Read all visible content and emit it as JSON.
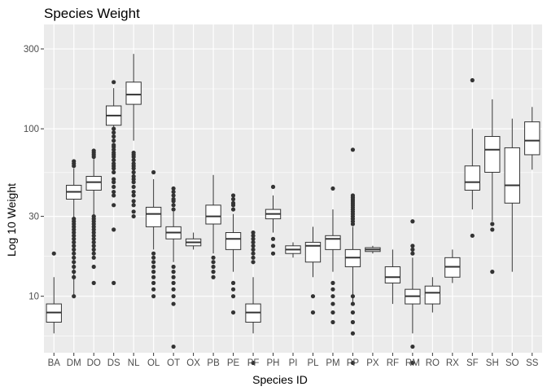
{
  "chart_data": {
    "type": "boxplot",
    "title": "Species Weight",
    "xlabel": "Species ID",
    "ylabel": "Log 10 Weight",
    "y_scale": "log10",
    "ylim": [
      4.6,
      420
    ],
    "y_ticks": [
      10,
      30,
      100,
      300
    ],
    "grid": true,
    "legend": "none",
    "colors": {
      "panel": "#EBEBEB",
      "grid_major": "#FFFFFF",
      "box_fill": "#FFFFFF",
      "box_line": "#333333",
      "outlier": "#333333"
    },
    "categories": [
      "BA",
      "DM",
      "DO",
      "DS",
      "NL",
      "OL",
      "OT",
      "OX",
      "PB",
      "PE",
      "PF",
      "PH",
      "PI",
      "PL",
      "PM",
      "PP",
      "PX",
      "RF",
      "RM",
      "RO",
      "RX",
      "SF",
      "SH",
      "SO",
      "SS"
    ],
    "boxes": [
      {
        "id": "BA",
        "whisker_low": 6,
        "q1": 7,
        "median": 8,
        "q3": 9,
        "whisker_high": 13,
        "outliers": [
          18
        ]
      },
      {
        "id": "DM",
        "whisker_low": 10,
        "q1": 38,
        "median": 42,
        "q3": 46,
        "whisker_high": 58,
        "outliers": [
          10,
          13,
          14,
          15,
          16,
          17,
          18,
          19,
          20,
          21,
          22,
          23,
          24,
          25,
          26,
          27,
          28,
          29,
          60,
          62,
          64
        ]
      },
      {
        "id": "DO",
        "whisker_low": 30,
        "q1": 43,
        "median": 48,
        "q3": 52,
        "whisker_high": 66,
        "outliers": [
          12,
          15,
          17,
          18,
          19,
          20,
          21,
          22,
          23,
          24,
          25,
          26,
          27,
          28,
          29,
          30,
          68,
          70,
          72,
          74
        ]
      },
      {
        "id": "DS",
        "whisker_low": 100,
        "q1": 105,
        "median": 120,
        "q3": 137,
        "whisker_high": 175,
        "outliers": [
          12,
          25,
          35,
          40,
          42,
          45,
          48,
          50,
          55,
          58,
          60,
          62,
          65,
          68,
          70,
          72,
          75,
          78,
          80,
          85,
          90,
          95,
          100,
          190
        ]
      },
      {
        "id": "NL",
        "whisker_low": 85,
        "q1": 140,
        "median": 160,
        "q3": 190,
        "whisker_high": 280,
        "outliers": [
          30,
          32,
          35,
          37,
          40,
          42,
          45,
          48,
          50,
          52,
          55,
          58,
          60,
          62,
          65,
          68,
          70,
          72
        ]
      },
      {
        "id": "OL",
        "whisker_low": 19,
        "q1": 26,
        "median": 31,
        "q3": 34,
        "whisker_high": 50,
        "outliers": [
          10,
          11,
          12,
          13,
          14,
          15,
          16,
          17,
          18,
          55
        ]
      },
      {
        "id": "OT",
        "whisker_low": 16,
        "q1": 22,
        "median": 24,
        "q3": 26,
        "whisker_high": 32,
        "outliers": [
          5,
          9,
          10,
          11,
          12,
          13,
          14,
          15,
          33,
          35,
          37,
          38,
          40,
          42,
          44
        ]
      },
      {
        "id": "OX",
        "whisker_low": 19,
        "q1": 20,
        "median": 21,
        "q3": 22,
        "whisker_high": 24,
        "outliers": []
      },
      {
        "id": "PB",
        "whisker_low": 18,
        "q1": 27,
        "median": 30,
        "q3": 35,
        "whisker_high": 53,
        "outliers": [
          13,
          14,
          15,
          16,
          17
        ]
      },
      {
        "id": "PE",
        "whisker_low": 14,
        "q1": 19,
        "median": 22,
        "q3": 24,
        "whisker_high": 31,
        "outliers": [
          8,
          10,
          11,
          12,
          33,
          35,
          36,
          38,
          40
        ]
      },
      {
        "id": "PF",
        "whisker_low": 6,
        "q1": 7,
        "median": 8,
        "q3": 9,
        "whisker_high": 13,
        "outliers": [
          4,
          16,
          17,
          18,
          19,
          20,
          21,
          22,
          23,
          24
        ]
      },
      {
        "id": "PH",
        "whisker_low": 24,
        "q1": 29,
        "median": 31,
        "q3": 33,
        "whisker_high": 40,
        "outliers": [
          18,
          20,
          22,
          45
        ]
      },
      {
        "id": "PI",
        "whisker_low": 17,
        "q1": 18,
        "median": 19,
        "q3": 20,
        "whisker_high": 21,
        "outliers": []
      },
      {
        "id": "PL",
        "whisker_low": 13,
        "q1": 16,
        "median": 20,
        "q3": 21,
        "whisker_high": 26,
        "outliers": [
          8,
          10
        ]
      },
      {
        "id": "PM",
        "whisker_low": 14,
        "q1": 19,
        "median": 22,
        "q3": 23,
        "whisker_high": 33,
        "outliers": [
          7,
          8,
          9,
          10,
          11,
          12,
          44
        ]
      },
      {
        "id": "PP",
        "whisker_low": 9,
        "q1": 15,
        "median": 17,
        "q3": 19,
        "whisker_high": 26,
        "outliers": [
          4,
          6,
          7,
          8,
          9,
          10,
          27,
          28,
          29,
          30,
          31,
          32,
          33,
          34,
          35,
          36,
          37,
          38,
          39,
          40,
          75
        ]
      },
      {
        "id": "PX",
        "whisker_low": 18,
        "q1": 18.5,
        "median": 19,
        "q3": 19.5,
        "whisker_high": 20,
        "outliers": []
      },
      {
        "id": "RF",
        "whisker_low": 9,
        "q1": 12,
        "median": 13,
        "q3": 15,
        "whisker_high": 19,
        "outliers": []
      },
      {
        "id": "RM",
        "whisker_low": 6,
        "q1": 9,
        "median": 10,
        "q3": 11,
        "whisker_high": 17,
        "outliers": [
          4,
          5,
          18,
          19,
          20,
          28
        ]
      },
      {
        "id": "RO",
        "whisker_low": 8,
        "q1": 9,
        "median": 10.5,
        "q3": 11.5,
        "whisker_high": 13,
        "outliers": []
      },
      {
        "id": "RX",
        "whisker_low": 12,
        "q1": 13,
        "median": 15,
        "q3": 17,
        "whisker_high": 19,
        "outliers": []
      },
      {
        "id": "SF",
        "whisker_low": 33,
        "q1": 43,
        "median": 48,
        "q3": 60,
        "whisker_high": 100,
        "outliers": [
          23,
          195
        ]
      },
      {
        "id": "SH",
        "whisker_low": 28,
        "q1": 55,
        "median": 75,
        "q3": 90,
        "whisker_high": 150,
        "outliers": [
          14,
          25,
          27
        ]
      },
      {
        "id": "SO",
        "whisker_low": 14,
        "q1": 36,
        "median": 46,
        "q3": 77,
        "whisker_high": 115,
        "outliers": []
      },
      {
        "id": "SS",
        "whisker_low": 57,
        "q1": 70,
        "median": 85,
        "q3": 110,
        "whisker_high": 135,
        "outliers": []
      }
    ]
  }
}
